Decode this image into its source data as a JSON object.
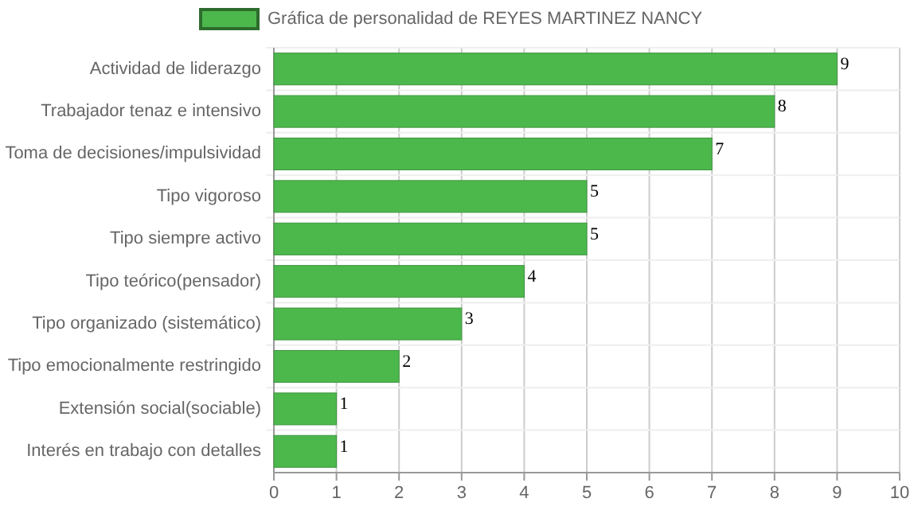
{
  "chart_data": {
    "type": "bar",
    "orientation": "horizontal",
    "categories": [
      "Actividad de liderazgo",
      "Trabajador tenaz e intensivo",
      "Toma de decisiones/impulsividad",
      "Tipo vigoroso",
      "Tipo siempre activo",
      "Tipo teórico(pensador)",
      "Tipo organizado (sistemático)",
      "Tipo emocionalmente restringido",
      "Extensión social(sociable)",
      "Interés en trabajo con detalles"
    ],
    "series": [
      {
        "name": "Gráfica de personalidad de REYES MARTINEZ NANCY",
        "color": "#4cb84c",
        "values": [
          9,
          8,
          7,
          5,
          5,
          4,
          3,
          2,
          1,
          1
        ]
      }
    ],
    "xlim": [
      0,
      10
    ],
    "xticks": [
      0,
      1,
      2,
      3,
      4,
      5,
      6,
      7,
      8,
      9,
      10
    ],
    "grid": "x",
    "legend": "top",
    "data_labels": true
  }
}
